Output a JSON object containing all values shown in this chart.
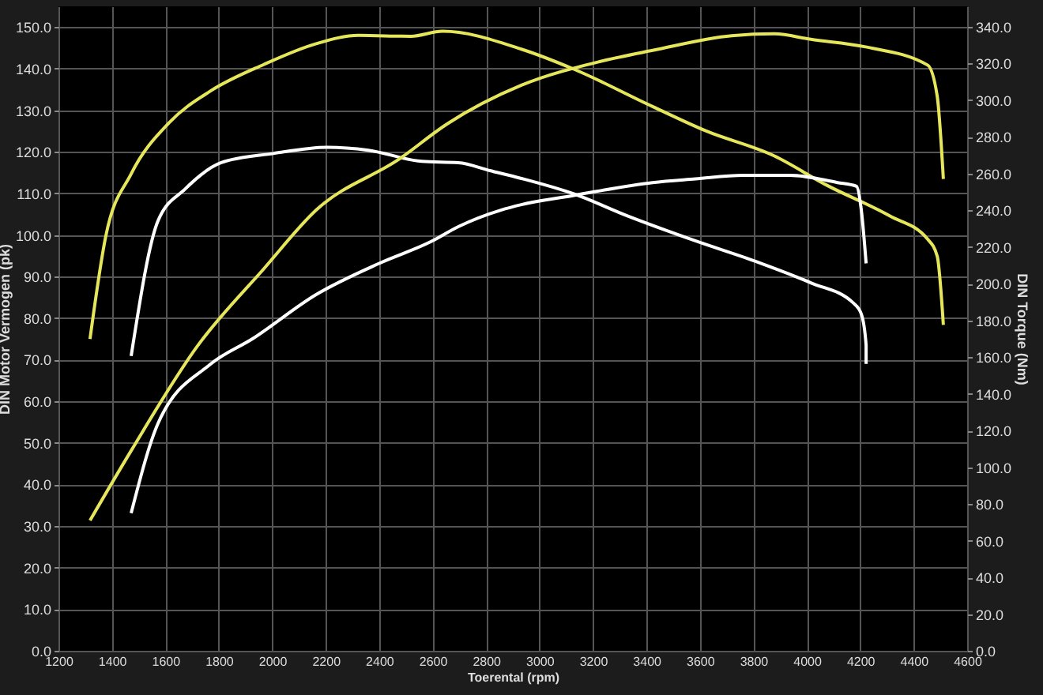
{
  "chart_data": {
    "type": "line",
    "xlabel": "Toerental (rpm)",
    "ylabel": "DIN Motor Vermogen (pk)",
    "y2label": "DIN Torque (Nm)",
    "xlim": [
      1200,
      4600
    ],
    "xticks": [
      1200,
      1400,
      1600,
      1800,
      2000,
      2200,
      2400,
      2600,
      2800,
      3000,
      3200,
      3400,
      3600,
      3800,
      4000,
      4200,
      4400,
      4600
    ],
    "ylim": [
      0,
      155
    ],
    "yticks": [
      {
        "value": 0,
        "label": "0.0"
      },
      {
        "value": 10,
        "label": "10.0"
      },
      {
        "value": 20,
        "label": "20.0"
      },
      {
        "value": 30,
        "label": "30.0"
      },
      {
        "value": 40,
        "label": "40.0"
      },
      {
        "value": 50,
        "label": "50.0"
      },
      {
        "value": 60,
        "label": "60.0"
      },
      {
        "value": 70,
        "label": "70.0"
      },
      {
        "value": 80,
        "label": "80.0"
      },
      {
        "value": 90,
        "label": "90.0"
      },
      {
        "value": 100,
        "label": "100.0"
      },
      {
        "value": 110,
        "label": "110.0"
      },
      {
        "value": 120,
        "label": "120.0"
      },
      {
        "value": 130,
        "label": "130.0"
      },
      {
        "value": 140,
        "label": "140.0"
      },
      {
        "value": 150,
        "label": "150.0"
      }
    ],
    "y2lim": [
      0,
      351
    ],
    "y2ticks": [
      {
        "value": 0,
        "label": "0.0"
      },
      {
        "value": 20,
        "label": "20.0"
      },
      {
        "value": 40,
        "label": "40.0"
      },
      {
        "value": 60,
        "label": "60.0"
      },
      {
        "value": 80,
        "label": "80.0"
      },
      {
        "value": 100,
        "label": "100.0"
      },
      {
        "value": 120,
        "label": "120.0"
      },
      {
        "value": 140,
        "label": "140.0"
      },
      {
        "value": 160,
        "label": "160.0"
      },
      {
        "value": 180,
        "label": "180.0"
      },
      {
        "value": 200,
        "label": "200.0"
      },
      {
        "value": 220,
        "label": "220.0"
      },
      {
        "value": 240,
        "label": "240.0"
      },
      {
        "value": 260,
        "label": "260.0"
      },
      {
        "value": 280,
        "label": "280.0"
      },
      {
        "value": 300,
        "label": "300.0"
      },
      {
        "value": 320,
        "label": "320.0"
      },
      {
        "value": 340,
        "label": "340.0"
      }
    ],
    "grid": true,
    "marker": "none",
    "line_style": "solid",
    "series": [
      {
        "color": "#e6e65a",
        "x": [
          1318,
          1377,
          1472,
          1614,
          1768,
          1968,
          2164,
          2323,
          2519,
          2637,
          2932,
          3128,
          3423,
          3624,
          3879,
          4074,
          4310,
          4452,
          4488,
          4511
        ],
        "values": [
          75,
          99.7,
          114.7,
          127,
          134.6,
          141,
          146,
          148,
          147.8,
          149,
          144.7,
          139.9,
          130.9,
          125,
          119,
          112,
          104.6,
          99,
          94.9,
          78.4
        ]
      },
      {
        "color": "#e6e65a",
        "axis": "y2",
        "x": [
          1318,
          1472,
          1720,
          1968,
          2164,
          2477,
          2655,
          2932,
          3228,
          3423,
          3719,
          3879,
          4015,
          4216,
          4452,
          4488,
          4511
        ],
        "values": [
          71,
          109,
          166,
          208,
          240,
          268,
          287,
          308,
          321,
          327,
          335,
          336,
          333,
          329,
          319,
          302,
          257
        ]
      },
      {
        "color": "#ffffff",
        "x": [
          1472,
          1573,
          1673,
          1809,
          2004,
          2205,
          2359,
          2560,
          2696,
          2814,
          2932,
          3128,
          3329,
          3583,
          3820,
          4015,
          4175,
          4204,
          4222,
          4222
        ],
        "values": [
          70.9,
          103.5,
          111,
          117.4,
          119.6,
          121.1,
          120.4,
          117.7,
          117.4,
          115.5,
          113.6,
          109.9,
          104.6,
          98.6,
          93.4,
          88.5,
          83.6,
          81,
          73.5,
          69
        ]
      },
      {
        "color": "#ffffff",
        "axis": "y2",
        "x": [
          1472,
          1573,
          1768,
          1927,
          2164,
          2400,
          2596,
          2696,
          2855,
          2932,
          3128,
          3423,
          3583,
          3760,
          3937,
          4115,
          4186,
          4204,
          4222
        ],
        "values": [
          75,
          124,
          156,
          170,
          194,
          211,
          223,
          231,
          240,
          243,
          248,
          255,
          257,
          259,
          259,
          255,
          253,
          240,
          211
        ]
      }
    ]
  }
}
